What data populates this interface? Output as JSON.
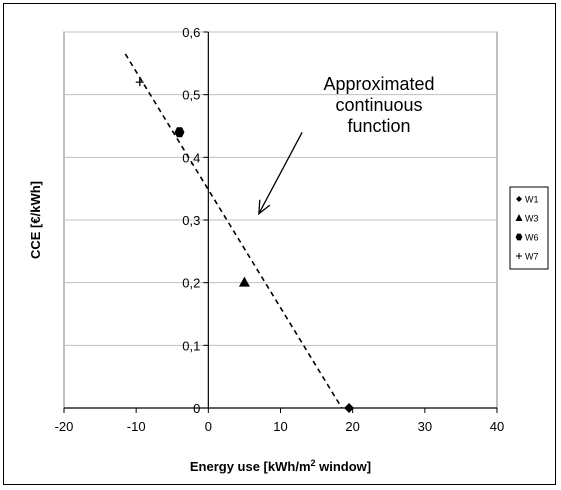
{
  "chart_data": {
    "type": "scatter",
    "title": "",
    "xlabel_prefix": "Energy use [kWh/m",
    "xlabel_sup": "2",
    "xlabel_suffix": " window]",
    "ylabel": "CCE [€/kWh]",
    "xlim": [
      -20,
      40
    ],
    "ylim": [
      0,
      0.6
    ],
    "x_ticks": [
      -20,
      -10,
      0,
      10,
      20,
      30,
      40
    ],
    "x_tick_labels": [
      "-20",
      "-10",
      "0",
      "10",
      "20",
      "30",
      "40"
    ],
    "y_ticks": [
      0,
      0.1,
      0.2,
      0.3,
      0.4,
      0.5,
      0.6
    ],
    "y_tick_labels": [
      "0",
      "0,1",
      "0,2",
      "0,3",
      "0,4",
      "0,5",
      "0,6"
    ],
    "grid": "horizontal",
    "legend_position": "right",
    "series": [
      {
        "name": "W1",
        "marker": "diamond",
        "points": [
          [
            19.5,
            0.0
          ]
        ]
      },
      {
        "name": "W3",
        "marker": "triangle",
        "points": [
          [
            5,
            0.2
          ]
        ]
      },
      {
        "name": "W6",
        "marker": "circle",
        "points": [
          [
            -4,
            0.44
          ]
        ]
      },
      {
        "name": "W7",
        "marker": "plus",
        "points": [
          [
            -9.5,
            0.52
          ]
        ]
      }
    ],
    "trendline": {
      "style": "dashed",
      "x": [
        -11.5,
        18.5
      ],
      "y": [
        0.565,
        0.0
      ]
    },
    "annotation": {
      "lines": [
        "Approximated",
        "continuous",
        "function"
      ],
      "arrow_from": [
        13,
        0.44
      ],
      "arrow_to": [
        7,
        0.31
      ]
    },
    "colors": {
      "marker": "#000000",
      "grid": "#c0c0c0",
      "axis": "#000000"
    }
  }
}
